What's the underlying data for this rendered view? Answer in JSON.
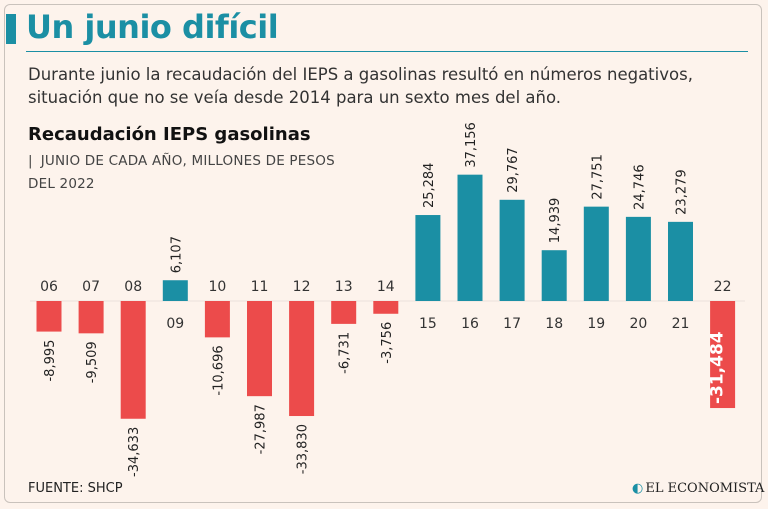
{
  "title": "Un junio difícil",
  "subtitle": "Durante junio la recaudación del IEPS a gasolinas resultó en números negativos, situación que no se veía desde 2014 para un sexto mes del año.",
  "chart_heading": "Recaudación IEPS gasolinas",
  "chart_subheading_pipe": "|",
  "chart_subheading": "JUNIO DE CADA AÑO, MILLONES DE PESOS DEL 2022",
  "source": "FUENTE: SHCP",
  "brand": "EL ECONOMISTA",
  "brand_icon": "newspaper-logo-icon",
  "colors": {
    "positive": "#1b8fa4",
    "negative": "#ec4b4b",
    "title": "#1b8fa4"
  },
  "chart_data": {
    "type": "bar",
    "title": "Recaudación IEPS gasolinas",
    "subtitle": "JUNIO DE CADA AÑO, MILLONES DE PESOS DEL 2022",
    "xlabel": "",
    "ylabel": "",
    "categories": [
      "06",
      "07",
      "08",
      "09",
      "10",
      "11",
      "12",
      "13",
      "14",
      "15",
      "16",
      "17",
      "18",
      "19",
      "20",
      "21",
      "22"
    ],
    "values": [
      -8995,
      -9509,
      -34633,
      6107,
      -10696,
      -27987,
      -33830,
      -6731,
      -3756,
      25284,
      37156,
      29767,
      14939,
      27751,
      24746,
      23279,
      -31484
    ],
    "value_labels": [
      "-8,995",
      "-9,509",
      "-34,633",
      "6,107",
      "-10,696",
      "-27,987",
      "-33,830",
      "-6,731",
      "-3,756",
      "25,284",
      "37,156",
      "29,767",
      "14,939",
      "27,751",
      "24,746",
      "23,279",
      "-31,484"
    ],
    "highlight_index": 16,
    "ylim": [
      -40000,
      40000
    ],
    "grid": false,
    "legend": "none"
  }
}
